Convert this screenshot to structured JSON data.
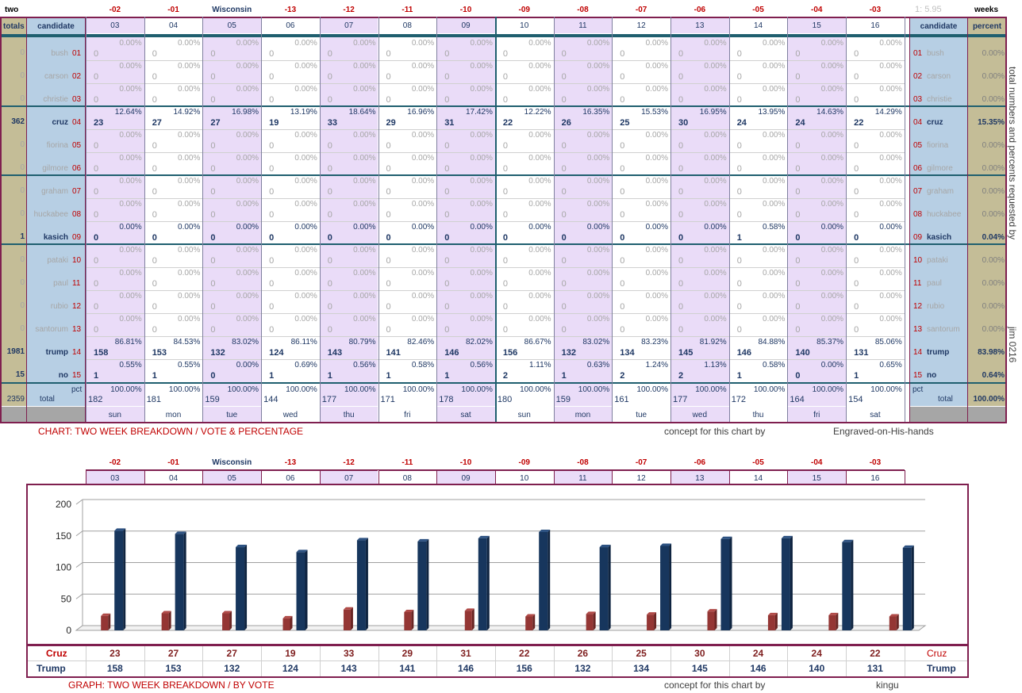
{
  "header": {
    "left_label": "two",
    "right_label": "weeks",
    "ratio": "1: 5.95",
    "day_codes": [
      "-02",
      "-01",
      "Wisconsin",
      "-13",
      "-12",
      "-11",
      "-10",
      "-09",
      "-08",
      "-07",
      "-06",
      "-05",
      "-04",
      "-03"
    ],
    "dates": [
      "03",
      "04",
      "05",
      "06",
      "07",
      "08",
      "09",
      "10",
      "11",
      "12",
      "13",
      "14",
      "15",
      "16"
    ],
    "totals_label": "totals",
    "candidate_label": "candidate",
    "percent_label": "percent"
  },
  "colors": {
    "lavender": "#eadcf8",
    "white": "#ffffff",
    "tan": "#c4bd97",
    "blue": "#b7cfe4",
    "border": "#7f1f4f",
    "teal": "#1f5f6f",
    "bar_cruz": "#943634",
    "bar_trump": "#17365d"
  },
  "candidates": [
    {
      "name": "bush",
      "num": "01",
      "total": "0",
      "pct": "0.00%",
      "bold": false,
      "counts": [
        "0",
        "0",
        "0",
        "0",
        "0",
        "0",
        "0",
        "0",
        "0",
        "0",
        "0",
        "0",
        "0",
        "0"
      ],
      "pcts": [
        "0.00%",
        "0.00%",
        "0.00%",
        "0.00%",
        "0.00%",
        "0.00%",
        "0.00%",
        "0.00%",
        "0.00%",
        "0.00%",
        "0.00%",
        "0.00%",
        "0.00%",
        "0.00%"
      ]
    },
    {
      "name": "carson",
      "num": "02",
      "total": "0",
      "pct": "0.00%",
      "bold": false,
      "counts": [
        "0",
        "0",
        "0",
        "0",
        "0",
        "0",
        "0",
        "0",
        "0",
        "0",
        "0",
        "0",
        "0",
        "0"
      ],
      "pcts": [
        "0.00%",
        "0.00%",
        "0.00%",
        "0.00%",
        "0.00%",
        "0.00%",
        "0.00%",
        "0.00%",
        "0.00%",
        "0.00%",
        "0.00%",
        "0.00%",
        "0.00%",
        "0.00%"
      ]
    },
    {
      "name": "christie",
      "num": "03",
      "total": "0",
      "pct": "0.00%",
      "bold": false,
      "counts": [
        "0",
        "0",
        "0",
        "0",
        "0",
        "0",
        "0",
        "0",
        "0",
        "0",
        "0",
        "0",
        "0",
        "0"
      ],
      "pcts": [
        "0.00%",
        "0.00%",
        "0.00%",
        "0.00%",
        "0.00%",
        "0.00%",
        "0.00%",
        "0.00%",
        "0.00%",
        "0.00%",
        "0.00%",
        "0.00%",
        "0.00%",
        "0.00%"
      ]
    },
    {
      "name": "cruz",
      "num": "04",
      "total": "362",
      "pct": "15.35%",
      "bold": true,
      "counts": [
        "23",
        "27",
        "27",
        "19",
        "33",
        "29",
        "31",
        "22",
        "26",
        "25",
        "30",
        "24",
        "24",
        "22"
      ],
      "pcts": [
        "12.64%",
        "14.92%",
        "16.98%",
        "13.19%",
        "18.64%",
        "16.96%",
        "17.42%",
        "12.22%",
        "16.35%",
        "15.53%",
        "16.95%",
        "13.95%",
        "14.63%",
        "14.29%"
      ]
    },
    {
      "name": "fiorina",
      "num": "05",
      "total": "0",
      "pct": "0.00%",
      "bold": false,
      "counts": [
        "0",
        "0",
        "0",
        "0",
        "0",
        "0",
        "0",
        "0",
        "0",
        "0",
        "0",
        "0",
        "0",
        "0"
      ],
      "pcts": [
        "0.00%",
        "0.00%",
        "0.00%",
        "0.00%",
        "0.00%",
        "0.00%",
        "0.00%",
        "0.00%",
        "0.00%",
        "0.00%",
        "0.00%",
        "0.00%",
        "0.00%",
        "0.00%"
      ]
    },
    {
      "name": "gilmore",
      "num": "06",
      "total": "0",
      "pct": "0.00%",
      "bold": false,
      "counts": [
        "0",
        "0",
        "0",
        "0",
        "0",
        "0",
        "0",
        "0",
        "0",
        "0",
        "0",
        "0",
        "0",
        "0"
      ],
      "pcts": [
        "0.00%",
        "0.00%",
        "0.00%",
        "0.00%",
        "0.00%",
        "0.00%",
        "0.00%",
        "0.00%",
        "0.00%",
        "0.00%",
        "0.00%",
        "0.00%",
        "0.00%",
        "0.00%"
      ]
    },
    {
      "name": "graham",
      "num": "07",
      "total": "0",
      "pct": "0.00%",
      "bold": false,
      "counts": [
        "0",
        "0",
        "0",
        "0",
        "0",
        "0",
        "0",
        "0",
        "0",
        "0",
        "0",
        "0",
        "0",
        "0"
      ],
      "pcts": [
        "0.00%",
        "0.00%",
        "0.00%",
        "0.00%",
        "0.00%",
        "0.00%",
        "0.00%",
        "0.00%",
        "0.00%",
        "0.00%",
        "0.00%",
        "0.00%",
        "0.00%",
        "0.00%"
      ]
    },
    {
      "name": "huckabee",
      "num": "08",
      "total": "0",
      "pct": "0.00%",
      "bold": false,
      "counts": [
        "0",
        "0",
        "0",
        "0",
        "0",
        "0",
        "0",
        "0",
        "0",
        "0",
        "0",
        "0",
        "0",
        "0"
      ],
      "pcts": [
        "0.00%",
        "0.00%",
        "0.00%",
        "0.00%",
        "0.00%",
        "0.00%",
        "0.00%",
        "0.00%",
        "0.00%",
        "0.00%",
        "0.00%",
        "0.00%",
        "0.00%",
        "0.00%"
      ]
    },
    {
      "name": "kasich",
      "num": "09",
      "total": "1",
      "pct": "0.04%",
      "bold": true,
      "counts": [
        "0",
        "0",
        "0",
        "0",
        "0",
        "0",
        "0",
        "0",
        "0",
        "0",
        "0",
        "1",
        "0",
        "0"
      ],
      "pcts": [
        "0.00%",
        "0.00%",
        "0.00%",
        "0.00%",
        "0.00%",
        "0.00%",
        "0.00%",
        "0.00%",
        "0.00%",
        "0.00%",
        "0.00%",
        "0.58%",
        "0.00%",
        "0.00%"
      ]
    },
    {
      "name": "pataki",
      "num": "10",
      "total": "0",
      "pct": "0.00%",
      "bold": false,
      "counts": [
        "0",
        "0",
        "0",
        "0",
        "0",
        "0",
        "0",
        "0",
        "0",
        "0",
        "0",
        "0",
        "0",
        "0"
      ],
      "pcts": [
        "0.00%",
        "0.00%",
        "0.00%",
        "0.00%",
        "0.00%",
        "0.00%",
        "0.00%",
        "0.00%",
        "0.00%",
        "0.00%",
        "0.00%",
        "0.00%",
        "0.00%",
        "0.00%"
      ]
    },
    {
      "name": "paul",
      "num": "11",
      "total": "0",
      "pct": "0.00%",
      "bold": false,
      "counts": [
        "0",
        "0",
        "0",
        "0",
        "0",
        "0",
        "0",
        "0",
        "0",
        "0",
        "0",
        "0",
        "0",
        "0"
      ],
      "pcts": [
        "0.00%",
        "0.00%",
        "0.00%",
        "0.00%",
        "0.00%",
        "0.00%",
        "0.00%",
        "0.00%",
        "0.00%",
        "0.00%",
        "0.00%",
        "0.00%",
        "0.00%",
        "0.00%"
      ]
    },
    {
      "name": "rubio",
      "num": "12",
      "total": "0",
      "pct": "0.00%",
      "bold": false,
      "counts": [
        "0",
        "0",
        "0",
        "0",
        "0",
        "0",
        "0",
        "0",
        "0",
        "0",
        "0",
        "0",
        "0",
        "0"
      ],
      "pcts": [
        "0.00%",
        "0.00%",
        "0.00%",
        "0.00%",
        "0.00%",
        "0.00%",
        "0.00%",
        "0.00%",
        "0.00%",
        "0.00%",
        "0.00%",
        "0.00%",
        "0.00%",
        "0.00%"
      ]
    },
    {
      "name": "santorum",
      "num": "13",
      "total": "0",
      "pct": "0.00%",
      "bold": false,
      "counts": [
        "0",
        "0",
        "0",
        "0",
        "0",
        "0",
        "0",
        "0",
        "0",
        "0",
        "0",
        "0",
        "0",
        "0"
      ],
      "pcts": [
        "0.00%",
        "0.00%",
        "0.00%",
        "0.00%",
        "0.00%",
        "0.00%",
        "0.00%",
        "0.00%",
        "0.00%",
        "0.00%",
        "0.00%",
        "0.00%",
        "0.00%",
        "0.00%"
      ]
    },
    {
      "name": "trump",
      "num": "14",
      "total": "1981",
      "pct": "83.98%",
      "bold": true,
      "counts": [
        "158",
        "153",
        "132",
        "124",
        "143",
        "141",
        "146",
        "156",
        "132",
        "134",
        "145",
        "146",
        "140",
        "131"
      ],
      "pcts": [
        "86.81%",
        "84.53%",
        "83.02%",
        "86.11%",
        "80.79%",
        "82.46%",
        "82.02%",
        "86.67%",
        "83.02%",
        "83.23%",
        "81.92%",
        "84.88%",
        "85.37%",
        "85.06%"
      ]
    },
    {
      "name": "no",
      "num": "15",
      "total": "15",
      "pct": "0.64%",
      "bold": true,
      "counts": [
        "1",
        "1",
        "0",
        "1",
        "1",
        "1",
        "1",
        "2",
        "1",
        "2",
        "2",
        "1",
        "0",
        "1"
      ],
      "pcts": [
        "0.55%",
        "0.55%",
        "0.00%",
        "0.69%",
        "0.56%",
        "0.58%",
        "0.56%",
        "1.11%",
        "0.63%",
        "1.24%",
        "1.13%",
        "0.58%",
        "0.00%",
        "0.65%"
      ]
    }
  ],
  "totals": {
    "pct_label": "pct",
    "label": "total",
    "grand_total": "2359",
    "grand_pct": "100.00%",
    "counts": [
      "182",
      "181",
      "159",
      "144",
      "177",
      "171",
      "178",
      "180",
      "159",
      "161",
      "177",
      "172",
      "164",
      "154"
    ],
    "pcts": [
      "100.00%",
      "100.00%",
      "100.00%",
      "100.00%",
      "100.00%",
      "100.00%",
      "100.00%",
      "100.00%",
      "100.00%",
      "100.00%",
      "100.00%",
      "100.00%",
      "100.00%",
      "100.00%"
    ]
  },
  "weekdays": [
    "sun",
    "mon",
    "tue",
    "wed",
    "thu",
    "fri",
    "sat",
    "sun",
    "mon",
    "tue",
    "wed",
    "thu",
    "fri",
    "sat"
  ],
  "side_text": "total numbers and percents requested by",
  "side_signature": "jim 0216",
  "chart1_caption": "CHART: TWO WEEK BREAKDOWN / VOTE & PERCENTAGE",
  "concept_label": "concept for this chart by",
  "concept_author1": "Engraved-on-His-hands",
  "chart2_caption": "GRAPH: TWO WEEK BREAKDOWN / BY VOTE",
  "concept_author2": "kingu",
  "chart_data": {
    "type": "bar",
    "categories": [
      "03",
      "04",
      "05",
      "06",
      "07",
      "08",
      "09",
      "10",
      "11",
      "12",
      "13",
      "14",
      "15",
      "16"
    ],
    "series": [
      {
        "name": "Cruz",
        "values": [
          23,
          27,
          27,
          19,
          33,
          29,
          31,
          22,
          26,
          25,
          30,
          24,
          24,
          22
        ]
      },
      {
        "name": "Trump",
        "values": [
          158,
          153,
          132,
          124,
          143,
          141,
          146,
          156,
          132,
          134,
          145,
          146,
          140,
          131
        ]
      }
    ],
    "ylim": [
      0,
      200
    ],
    "yticks": [
      0,
      50,
      100,
      150,
      200
    ],
    "grid": true
  }
}
